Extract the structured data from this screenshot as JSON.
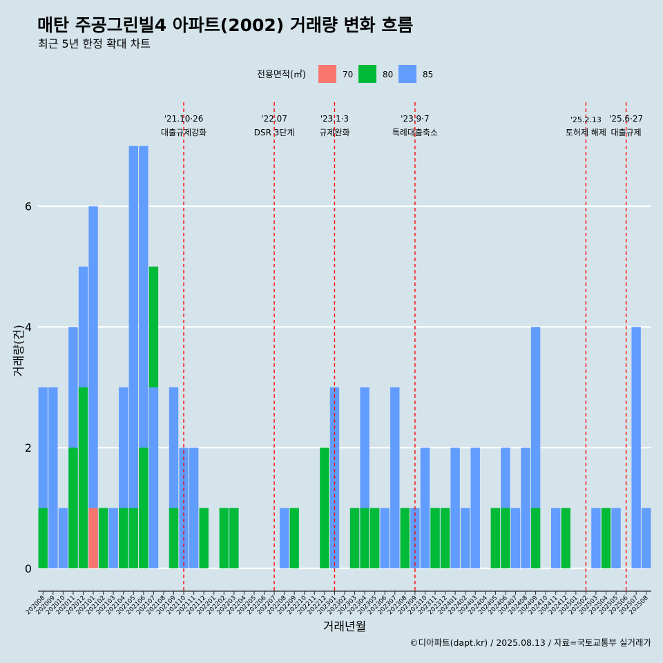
{
  "title": "매탄 주공그린빌4 아파트(2002) 거래량 변화 흐름",
  "subtitle": "최근 5년 한정 확대 차트",
  "caption": "©디아파트(dapt.kr) / 2025.08.13 / 자료=국토교통부 실거래가",
  "legend_title": "전용면적(㎡)",
  "colors": {
    "70": "#f8766d",
    "80": "#00ba38",
    "85": "#619cff",
    "background": "#d5e4eb",
    "event_line": "#ff0000"
  },
  "chart_data": {
    "type": "bar",
    "xlabel": "거래년월",
    "ylabel": "거래량(건)",
    "ylim": [
      0,
      7
    ],
    "yticks": [
      0,
      2,
      4,
      6
    ],
    "grid": "horizontal",
    "legend_position": "top",
    "categories": [
      "202008",
      "202009",
      "202010",
      "202011",
      "202012",
      "202101",
      "202102",
      "202103",
      "202104",
      "202105",
      "202106",
      "202107",
      "202108",
      "202109",
      "202110",
      "202111",
      "202112",
      "202201",
      "202202",
      "202203",
      "202204",
      "202205",
      "202206",
      "202207",
      "202208",
      "202209",
      "202210",
      "202211",
      "202212",
      "202301",
      "202302",
      "202303",
      "202304",
      "202305",
      "202306",
      "202307",
      "202308",
      "202309",
      "202310",
      "202311",
      "202312",
      "202401",
      "202402",
      "202403",
      "202404",
      "202405",
      "202406",
      "202407",
      "202408",
      "202409",
      "202410",
      "202411",
      "202412",
      "202501",
      "202502",
      "202503",
      "202504",
      "202505",
      "202506",
      "202507",
      "202508"
    ],
    "series": [
      {
        "name": "70",
        "values": [
          0,
          0,
          0,
          0,
          0,
          1,
          0,
          0,
          0,
          0,
          0,
          0,
          0,
          0,
          0,
          0,
          0,
          0,
          0,
          0,
          0,
          0,
          0,
          0,
          0,
          0,
          0,
          0,
          0,
          0,
          0,
          0,
          0,
          0,
          0,
          0,
          0,
          0,
          0,
          0,
          0,
          0,
          0,
          0,
          0,
          0,
          0,
          0,
          0,
          0,
          0,
          0,
          0,
          0,
          0,
          0,
          0,
          0,
          0,
          0,
          0
        ]
      },
      {
        "name": "80",
        "values": [
          1,
          0,
          0,
          2,
          3,
          0,
          1,
          0,
          1,
          1,
          2,
          5,
          0,
          1,
          0,
          0,
          1,
          0,
          1,
          1,
          0,
          0,
          0,
          0,
          0,
          1,
          0,
          0,
          2,
          0,
          0,
          1,
          1,
          1,
          0,
          0,
          1,
          0,
          0,
          1,
          1,
          0,
          0,
          0,
          0,
          1,
          1,
          0,
          0,
          1,
          0,
          0,
          1,
          0,
          0,
          0,
          1,
          0,
          0,
          0,
          0
        ]
      },
      {
        "name": "85",
        "values": [
          3,
          3,
          1,
          4,
          5,
          6,
          1,
          1,
          3,
          7,
          7,
          3,
          0,
          3,
          2,
          2,
          1,
          0,
          0,
          1,
          0,
          0,
          0,
          0,
          1,
          0,
          0,
          0,
          0,
          3,
          0,
          1,
          3,
          1,
          1,
          3,
          1,
          1,
          2,
          1,
          1,
          2,
          1,
          2,
          0,
          1,
          2,
          1,
          2,
          4,
          0,
          1,
          0,
          0,
          0,
          1,
          0,
          1,
          0,
          4,
          1
        ]
      }
    ],
    "events": [
      {
        "category": "202110",
        "date": "'21.10·26",
        "label": "대출규제강화"
      },
      {
        "category": "202207",
        "date": "'22.07",
        "label": "DSR 3단계"
      },
      {
        "category": "202301",
        "date": "'23.1·3",
        "label": "규제완화"
      },
      {
        "category": "202309",
        "date": "'23.9·7",
        "label": "특례대출축소"
      },
      {
        "category": "202502",
        "date": "'25.2.13",
        "label": "토허제 해제"
      },
      {
        "category": "202506",
        "date": "'25.6·27",
        "label": "대출규제"
      }
    ]
  }
}
